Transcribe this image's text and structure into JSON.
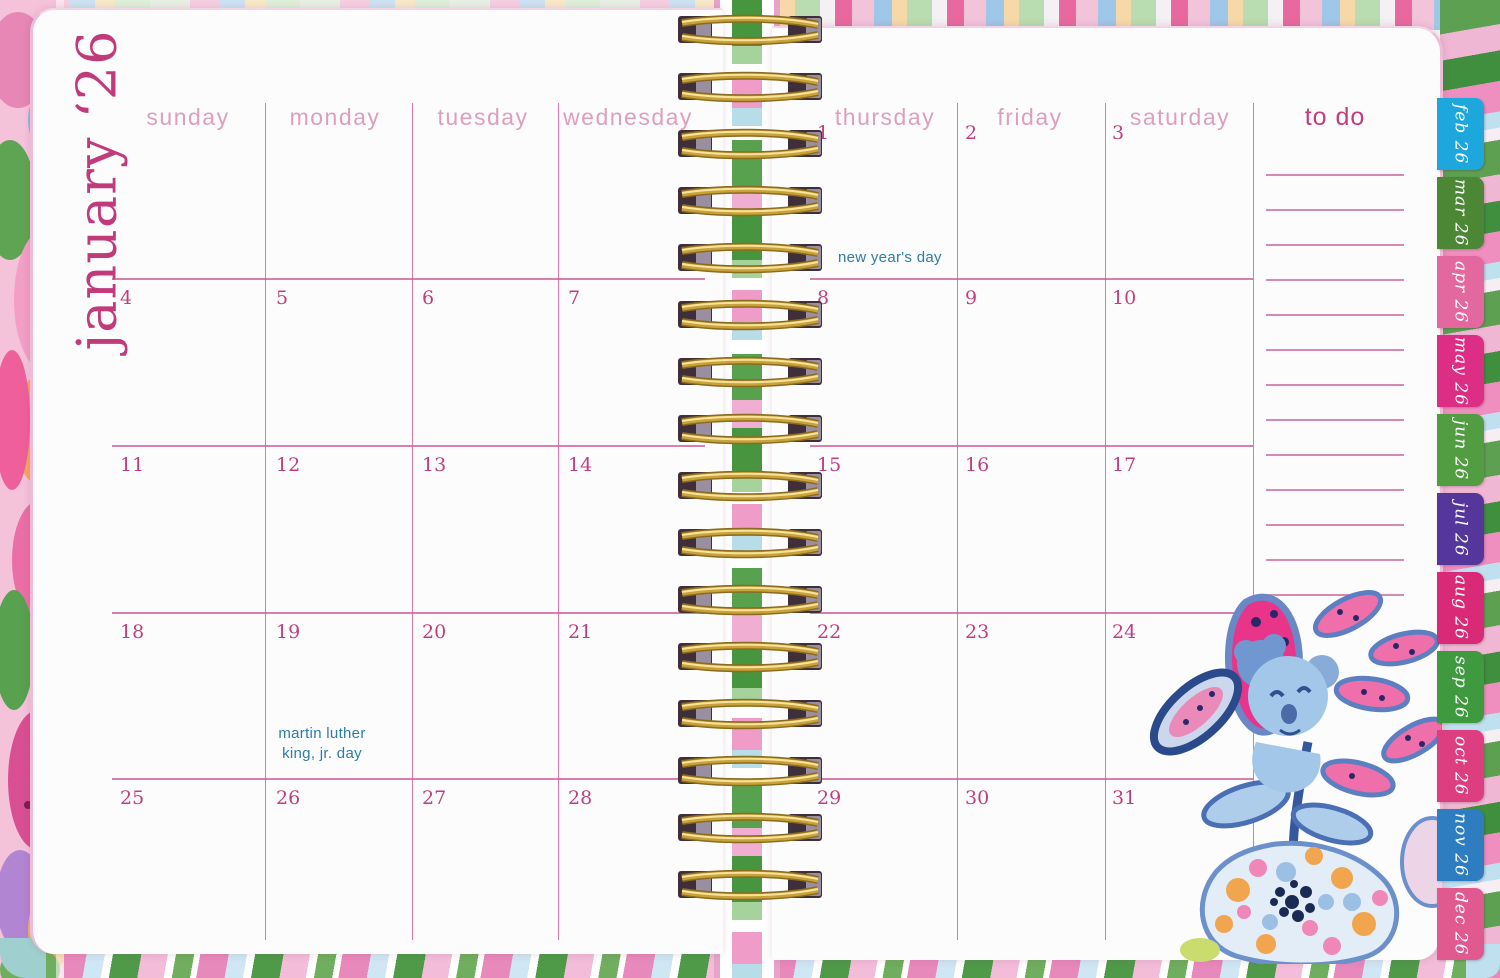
{
  "title": "january ‘26",
  "weekday_headers_left": [
    "sunday",
    "monday",
    "tuesday",
    "wednesday"
  ],
  "weekday_headers_right": [
    "thursday",
    "friday",
    "saturday"
  ],
  "todo_label": "to do",
  "weeks": {
    "left": [
      [
        "",
        "",
        "",
        ""
      ],
      [
        "4",
        "5",
        "6",
        "7"
      ],
      [
        "11",
        "12",
        "13",
        "14"
      ],
      [
        "18",
        "19",
        "20",
        "21"
      ],
      [
        "25",
        "26",
        "27",
        "28"
      ]
    ],
    "right": [
      [
        "1",
        "2",
        "3"
      ],
      [
        "8",
        "9",
        "10"
      ],
      [
        "15",
        "16",
        "17"
      ],
      [
        "22",
        "23",
        "24"
      ],
      [
        "29",
        "30",
        "31"
      ]
    ]
  },
  "holidays": [
    {
      "day": "1",
      "label": "new year's day"
    },
    {
      "day": "19",
      "label_line1": "martin luther",
      "label_line2": "king, jr. day"
    }
  ],
  "tabs": [
    {
      "label": "feb 26",
      "color": "#1ea7dd"
    },
    {
      "label": "mar 26",
      "color": "#4b8735"
    },
    {
      "label": "apr 26",
      "color": "#e2689f"
    },
    {
      "label": "may 26",
      "color": "#dd2e86"
    },
    {
      "label": "jun 26",
      "color": "#529c41"
    },
    {
      "label": "jul 26",
      "color": "#55379b"
    },
    {
      "label": "aug 26",
      "color": "#d92a78"
    },
    {
      "label": "sep 26",
      "color": "#3f9a3f"
    },
    {
      "label": "oct 26",
      "color": "#dc3e80"
    },
    {
      "label": "nov 26",
      "color": "#2d7dc0"
    },
    {
      "label": "dec 26",
      "color": "#e0598f"
    }
  ],
  "colors": {
    "title_pink": "#c13a7a",
    "header_pink": "#dc9fbe",
    "grid_pink": "#d97cab",
    "row_pink": "#c95591",
    "date_pink": "#bf3f7e",
    "holiday_teal": "#2d7da3",
    "binding_gold": "#caa23b",
    "spine_trim_pink": "#e7a3cb"
  }
}
